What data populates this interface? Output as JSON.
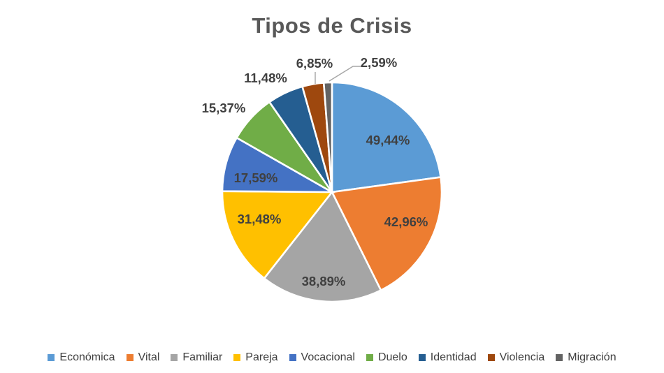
{
  "page": {
    "background": "#FFFFFF"
  },
  "chart_data": {
    "type": "pie",
    "title": "Tipos de Crisis",
    "categories": [
      "Económica",
      "Vital",
      "Familiar",
      "Pareja",
      "Vocacional",
      "Duelo",
      "Identidad",
      "Violencia",
      "Migración"
    ],
    "values": [
      49.44,
      42.96,
      38.89,
      31.48,
      17.59,
      15.37,
      11.48,
      6.85,
      2.59
    ],
    "labels": [
      "49,44%",
      "42,96%",
      "38,89%",
      "31,48%",
      "17,59%",
      "15,37%",
      "11,48%",
      "6,85%",
      "2,59%"
    ],
    "colors": [
      "#5B9BD5",
      "#ED7D31",
      "#A5A5A5",
      "#FFC000",
      "#4472C4",
      "#70AD47",
      "#255E91",
      "#9E480E",
      "#636363"
    ],
    "values_unit": "%",
    "start_angle_deg": 0,
    "direction": "clockwise",
    "legend_position": "bottom",
    "title_color": "#595959",
    "data_label_color": "#404040",
    "legend_text_color": "#404040",
    "leader_line_color": "#A6A6A6",
    "slice_gap_color": "#FFFFFF"
  }
}
